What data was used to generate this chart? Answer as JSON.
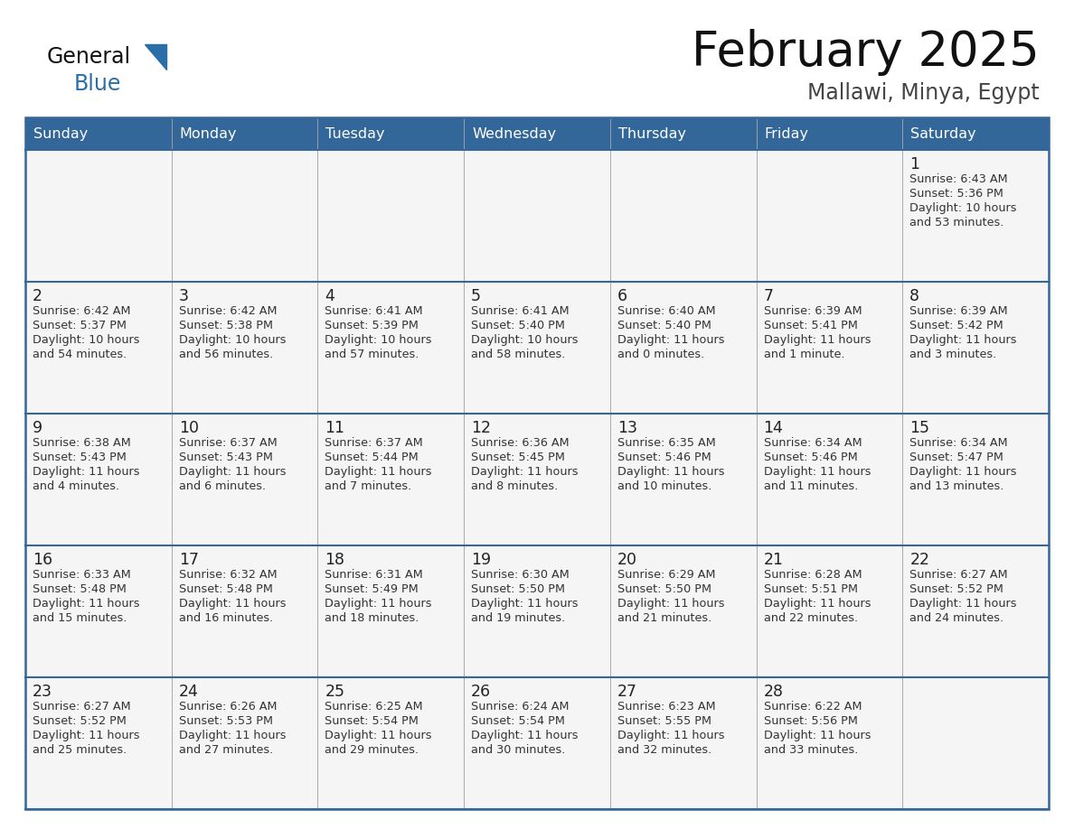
{
  "title": "February 2025",
  "subtitle": "Mallawi, Minya, Egypt",
  "header_bg": "#336699",
  "header_text": "#ffffff",
  "cell_bg": "#f5f5f5",
  "border_color_dark": "#336699",
  "border_color_light": "#aaaaaa",
  "text_color": "#333333",
  "days_of_week": [
    "Sunday",
    "Monday",
    "Tuesday",
    "Wednesday",
    "Thursday",
    "Friday",
    "Saturday"
  ],
  "calendar_data": [
    [
      {
        "day": "",
        "info": ""
      },
      {
        "day": "",
        "info": ""
      },
      {
        "day": "",
        "info": ""
      },
      {
        "day": "",
        "info": ""
      },
      {
        "day": "",
        "info": ""
      },
      {
        "day": "",
        "info": ""
      },
      {
        "day": "1",
        "info": "Sunrise: 6:43 AM\nSunset: 5:36 PM\nDaylight: 10 hours\nand 53 minutes."
      }
    ],
    [
      {
        "day": "2",
        "info": "Sunrise: 6:42 AM\nSunset: 5:37 PM\nDaylight: 10 hours\nand 54 minutes."
      },
      {
        "day": "3",
        "info": "Sunrise: 6:42 AM\nSunset: 5:38 PM\nDaylight: 10 hours\nand 56 minutes."
      },
      {
        "day": "4",
        "info": "Sunrise: 6:41 AM\nSunset: 5:39 PM\nDaylight: 10 hours\nand 57 minutes."
      },
      {
        "day": "5",
        "info": "Sunrise: 6:41 AM\nSunset: 5:40 PM\nDaylight: 10 hours\nand 58 minutes."
      },
      {
        "day": "6",
        "info": "Sunrise: 6:40 AM\nSunset: 5:40 PM\nDaylight: 11 hours\nand 0 minutes."
      },
      {
        "day": "7",
        "info": "Sunrise: 6:39 AM\nSunset: 5:41 PM\nDaylight: 11 hours\nand 1 minute."
      },
      {
        "day": "8",
        "info": "Sunrise: 6:39 AM\nSunset: 5:42 PM\nDaylight: 11 hours\nand 3 minutes."
      }
    ],
    [
      {
        "day": "9",
        "info": "Sunrise: 6:38 AM\nSunset: 5:43 PM\nDaylight: 11 hours\nand 4 minutes."
      },
      {
        "day": "10",
        "info": "Sunrise: 6:37 AM\nSunset: 5:43 PM\nDaylight: 11 hours\nand 6 minutes."
      },
      {
        "day": "11",
        "info": "Sunrise: 6:37 AM\nSunset: 5:44 PM\nDaylight: 11 hours\nand 7 minutes."
      },
      {
        "day": "12",
        "info": "Sunrise: 6:36 AM\nSunset: 5:45 PM\nDaylight: 11 hours\nand 8 minutes."
      },
      {
        "day": "13",
        "info": "Sunrise: 6:35 AM\nSunset: 5:46 PM\nDaylight: 11 hours\nand 10 minutes."
      },
      {
        "day": "14",
        "info": "Sunrise: 6:34 AM\nSunset: 5:46 PM\nDaylight: 11 hours\nand 11 minutes."
      },
      {
        "day": "15",
        "info": "Sunrise: 6:34 AM\nSunset: 5:47 PM\nDaylight: 11 hours\nand 13 minutes."
      }
    ],
    [
      {
        "day": "16",
        "info": "Sunrise: 6:33 AM\nSunset: 5:48 PM\nDaylight: 11 hours\nand 15 minutes."
      },
      {
        "day": "17",
        "info": "Sunrise: 6:32 AM\nSunset: 5:48 PM\nDaylight: 11 hours\nand 16 minutes."
      },
      {
        "day": "18",
        "info": "Sunrise: 6:31 AM\nSunset: 5:49 PM\nDaylight: 11 hours\nand 18 minutes."
      },
      {
        "day": "19",
        "info": "Sunrise: 6:30 AM\nSunset: 5:50 PM\nDaylight: 11 hours\nand 19 minutes."
      },
      {
        "day": "20",
        "info": "Sunrise: 6:29 AM\nSunset: 5:50 PM\nDaylight: 11 hours\nand 21 minutes."
      },
      {
        "day": "21",
        "info": "Sunrise: 6:28 AM\nSunset: 5:51 PM\nDaylight: 11 hours\nand 22 minutes."
      },
      {
        "day": "22",
        "info": "Sunrise: 6:27 AM\nSunset: 5:52 PM\nDaylight: 11 hours\nand 24 minutes."
      }
    ],
    [
      {
        "day": "23",
        "info": "Sunrise: 6:27 AM\nSunset: 5:52 PM\nDaylight: 11 hours\nand 25 minutes."
      },
      {
        "day": "24",
        "info": "Sunrise: 6:26 AM\nSunset: 5:53 PM\nDaylight: 11 hours\nand 27 minutes."
      },
      {
        "day": "25",
        "info": "Sunrise: 6:25 AM\nSunset: 5:54 PM\nDaylight: 11 hours\nand 29 minutes."
      },
      {
        "day": "26",
        "info": "Sunrise: 6:24 AM\nSunset: 5:54 PM\nDaylight: 11 hours\nand 30 minutes."
      },
      {
        "day": "27",
        "info": "Sunrise: 6:23 AM\nSunset: 5:55 PM\nDaylight: 11 hours\nand 32 minutes."
      },
      {
        "day": "28",
        "info": "Sunrise: 6:22 AM\nSunset: 5:56 PM\nDaylight: 11 hours\nand 33 minutes."
      },
      {
        "day": "",
        "info": ""
      }
    ]
  ]
}
